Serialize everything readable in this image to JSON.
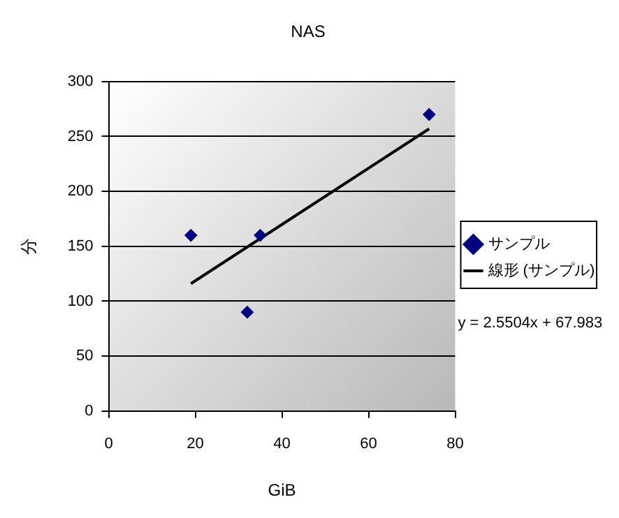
{
  "chart_data": {
    "type": "scatter",
    "title": "NAS",
    "xlabel": "GiB",
    "ylabel": "分",
    "series": [
      {
        "name": "サンプル",
        "type": "scatter",
        "color": "#000080",
        "x": [
          19,
          32,
          35,
          74
        ],
        "values": [
          160,
          90,
          160,
          270
        ],
        "marker": "diamond"
      },
      {
        "name": "線形 (サンプル)",
        "type": "line",
        "color": "#000000",
        "x": [
          19,
          74
        ],
        "values": [
          116,
          257
        ],
        "marker": "none",
        "line_style": "solid"
      }
    ],
    "xlim": [
      0,
      80
    ],
    "xticks": [
      0,
      20,
      40,
      60,
      80
    ],
    "ylim": [
      0,
      300
    ],
    "yticks": [
      0,
      50,
      100,
      150,
      200,
      250,
      300
    ],
    "grid": "y",
    "legend": "right",
    "annotations": [
      "y = 2.5504x + 67.983"
    ]
  }
}
